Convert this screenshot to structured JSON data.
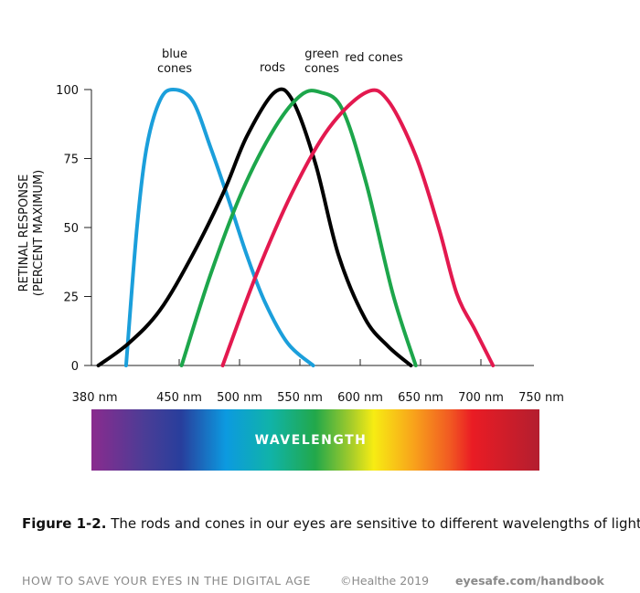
{
  "chart_data": {
    "type": "line",
    "y_label": [
      "RETINAL RESPONSE",
      "(PERCENT MAXIMUM)"
    ],
    "xlim": [
      380,
      750
    ],
    "xticks": [
      {
        "value": 380,
        "label": "380 nm"
      },
      {
        "value": 450,
        "label": "450 nm"
      },
      {
        "value": 500,
        "label": "500 nm"
      },
      {
        "value": 550,
        "label": "550 nm"
      },
      {
        "value": 600,
        "label": "600 nm"
      },
      {
        "value": 650,
        "label": "650 nm"
      },
      {
        "value": 700,
        "label": "700 nm"
      },
      {
        "value": 750,
        "label": "750 nm"
      }
    ],
    "ylim": [
      0,
      100
    ],
    "yticks": [
      0,
      25,
      50,
      75,
      100
    ],
    "series": [
      {
        "name": "blue cones",
        "color": "#1b9fdb",
        "x": [
          406,
          415,
          423,
          434,
          445,
          461,
          476,
          491,
          506,
          521,
          540,
          561
        ],
        "values": [
          0,
          50,
          79,
          96,
          100,
          96,
          79,
          60,
          40,
          23,
          8,
          0
        ]
      },
      {
        "name": "rods",
        "color": "#000000",
        "x": [
          383,
          408,
          434,
          461,
          487,
          506,
          529,
          544,
          563,
          582,
          604,
          623,
          642
        ],
        "values": [
          0,
          8,
          20,
          40,
          63,
          83,
          99,
          96,
          73,
          40,
          17,
          7,
          0
        ]
      },
      {
        "name": "green cones",
        "color": "#1da64b",
        "x": [
          452,
          476,
          502,
          529,
          551,
          567,
          585,
          605,
          627,
          646
        ],
        "values": [
          0,
          33,
          63,
          86,
          98,
          99,
          93,
          66,
          26,
          0
        ]
      },
      {
        "name": "red cones",
        "color": "#e3194f",
        "x": [
          486,
          514,
          544,
          574,
          605,
          623,
          646,
          665,
          680,
          695,
          710
        ],
        "values": [
          0,
          33,
          63,
          86,
          99,
          96,
          76,
          50,
          26,
          13,
          0
        ]
      }
    ]
  },
  "spectrum_label": "WAVELENGTH",
  "caption": {
    "label": "Figure 1-2.",
    "text": "The rods and cones in our eyes are sensitive to different wavelengths of light."
  },
  "footer": {
    "title": "HOW TO SAVE YOUR EYES IN THE DIGITAL AGE",
    "copyright": "©Healthe 2019",
    "url": "eyesafe.com/handbook"
  }
}
